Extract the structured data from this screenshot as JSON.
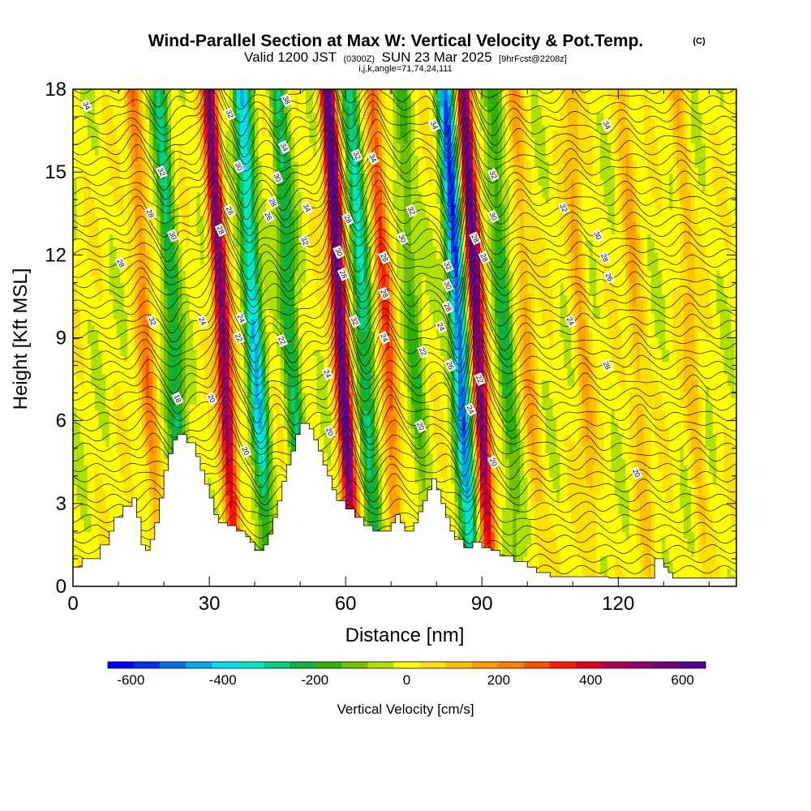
{
  "header": {
    "title": "Wind-Parallel Section at Max W: Vertical Velocity & Pot.Temp.",
    "copyright": "(C)",
    "valid_prefix": "Valid 1200 JST",
    "valid_utc": "(0300Z)",
    "valid_date": "SUN 23 Mar 2025",
    "forecast": "[9hrFcst@2208z]",
    "indices": "i,j,k,angle=71,74,24,111"
  },
  "chart_data": {
    "type": "heatmap",
    "xlabel": "Distance [nm]",
    "ylabel": "Height [Kft MSL]",
    "xlim": [
      0,
      146
    ],
    "ylim": [
      0,
      18
    ],
    "x_ticks": [
      0,
      30,
      60,
      90,
      120
    ],
    "x_tick_labels": [
      "0",
      "30",
      "60",
      "90",
      "120"
    ],
    "y_ticks": [
      0,
      3,
      6,
      9,
      12,
      15,
      18
    ],
    "y_tick_labels": [
      "0",
      "3",
      "6",
      "9",
      "12",
      "15",
      "18"
    ],
    "colorbar": {
      "label": "Vertical Velocity [cm/s]",
      "min": -650,
      "max": 650,
      "tick_values": [
        -600,
        -400,
        -200,
        0,
        200,
        400,
        600
      ],
      "tick_labels": [
        "-600",
        "-400",
        "-200",
        "0",
        "200",
        "400",
        "600"
      ],
      "colors": [
        "#0000ff",
        "#0030f0",
        "#0070e8",
        "#00a8e8",
        "#00e0f0",
        "#00e8c0",
        "#00d080",
        "#10b040",
        "#30b000",
        "#70c000",
        "#b0e000",
        "#ffff00",
        "#ffe000",
        "#ffc000",
        "#ffa000",
        "#ff8000",
        "#ff5000",
        "#ff1800",
        "#e00020",
        "#b00050",
        "#900070",
        "#70007a",
        "#580090"
      ]
    },
    "updrafts": [
      {
        "x0": 33,
        "w": 550
      },
      {
        "x0": 59,
        "w": 650
      },
      {
        "x0": 69,
        "w": 300
      },
      {
        "x0": 89,
        "w": 620
      },
      {
        "x0": 16,
        "w": 220
      },
      {
        "x0": 100,
        "w": 150
      },
      {
        "x0": 112,
        "w": 150
      },
      {
        "x0": 124,
        "w": 140
      },
      {
        "x0": 136,
        "w": 120
      }
    ],
    "downdrafts": [
      {
        "x0": 40,
        "w": -400
      },
      {
        "x0": 48,
        "w": -250
      },
      {
        "x0": 64,
        "w": -300
      },
      {
        "x0": 85,
        "w": -550
      },
      {
        "x0": 22,
        "w": -250
      },
      {
        "x0": 95,
        "w": -200
      },
      {
        "x0": 75,
        "w": -150
      }
    ],
    "terrain": [
      [
        0,
        0.7
      ],
      [
        2,
        0.7
      ],
      [
        2,
        1
      ],
      [
        6,
        1
      ],
      [
        6,
        1.5
      ],
      [
        8,
        1.5
      ],
      [
        8,
        2
      ],
      [
        9,
        2
      ],
      [
        9,
        2.5
      ],
      [
        11,
        2.5
      ],
      [
        11,
        2.9
      ],
      [
        13,
        2.9
      ],
      [
        13,
        3.2
      ],
      [
        14,
        3.2
      ],
      [
        14,
        2.5
      ],
      [
        15,
        2.5
      ],
      [
        15,
        1.5
      ],
      [
        16,
        1.5
      ],
      [
        16,
        1.3
      ],
      [
        17,
        1.3
      ],
      [
        17,
        1.7
      ],
      [
        18,
        1.7
      ],
      [
        18,
        2.3
      ],
      [
        19,
        2.3
      ],
      [
        19,
        3.2
      ],
      [
        20,
        3.2
      ],
      [
        20,
        4.2
      ],
      [
        21,
        4.2
      ],
      [
        21,
        4.8
      ],
      [
        22,
        4.8
      ],
      [
        22,
        5.3
      ],
      [
        23,
        5.3
      ],
      [
        23,
        5.5
      ],
      [
        25,
        5.5
      ],
      [
        25,
        5.2
      ],
      [
        27,
        5.2
      ],
      [
        27,
        4.7
      ],
      [
        28,
        4.7
      ],
      [
        28,
        4.2
      ],
      [
        29,
        4.2
      ],
      [
        29,
        3.7
      ],
      [
        30,
        3.7
      ],
      [
        30,
        3.2
      ],
      [
        31,
        3.2
      ],
      [
        31,
        2.6
      ],
      [
        32,
        2.6
      ],
      [
        32,
        2.3
      ],
      [
        34,
        2.3
      ],
      [
        34,
        2.2
      ],
      [
        36,
        2.2
      ],
      [
        36,
        2.0
      ],
      [
        38,
        2.0
      ],
      [
        38,
        1.8
      ],
      [
        39,
        1.8
      ],
      [
        39,
        1.6
      ],
      [
        40,
        1.6
      ],
      [
        40,
        1.3
      ],
      [
        42,
        1.3
      ],
      [
        42,
        1.5
      ],
      [
        43,
        1.5
      ],
      [
        43,
        1.9
      ],
      [
        44,
        1.9
      ],
      [
        44,
        2.5
      ],
      [
        45,
        2.5
      ],
      [
        45,
        3.1
      ],
      [
        46,
        3.1
      ],
      [
        46,
        3.8
      ],
      [
        47,
        3.8
      ],
      [
        47,
        4.4
      ],
      [
        48,
        4.4
      ],
      [
        48,
        4.9
      ],
      [
        49,
        4.9
      ],
      [
        49,
        5.5
      ],
      [
        50,
        5.5
      ],
      [
        50,
        5.9
      ],
      [
        52,
        5.9
      ],
      [
        52,
        5.7
      ],
      [
        53,
        5.7
      ],
      [
        53,
        5.3
      ],
      [
        54,
        5.3
      ],
      [
        54,
        4.9
      ],
      [
        55,
        4.9
      ],
      [
        55,
        4.4
      ],
      [
        56,
        4.4
      ],
      [
        56,
        4.0
      ],
      [
        57,
        4.0
      ],
      [
        57,
        3.5
      ],
      [
        58,
        3.5
      ],
      [
        58,
        3.1
      ],
      [
        60,
        3.1
      ],
      [
        60,
        2.8
      ],
      [
        62,
        2.8
      ],
      [
        62,
        2.5
      ],
      [
        64,
        2.5
      ],
      [
        64,
        2.2
      ],
      [
        66,
        2.2
      ],
      [
        66,
        2.0
      ],
      [
        70,
        2.0
      ],
      [
        70,
        2.3
      ],
      [
        71,
        2.3
      ],
      [
        71,
        2.6
      ],
      [
        72,
        2.6
      ],
      [
        72,
        2.3
      ],
      [
        73,
        2.3
      ],
      [
        73,
        2.0
      ],
      [
        75,
        2.0
      ],
      [
        75,
        2.3
      ],
      [
        76,
        2.3
      ],
      [
        76,
        2.7
      ],
      [
        77,
        2.7
      ],
      [
        77,
        3.1
      ],
      [
        78,
        3.1
      ],
      [
        78,
        3.5
      ],
      [
        79,
        3.5
      ],
      [
        79,
        3.9
      ],
      [
        80,
        3.9
      ],
      [
        80,
        3.5
      ],
      [
        81,
        3.5
      ],
      [
        81,
        3.0
      ],
      [
        82,
        3.0
      ],
      [
        82,
        2.5
      ],
      [
        83,
        2.5
      ],
      [
        83,
        2.0
      ],
      [
        84,
        2.0
      ],
      [
        84,
        1.7
      ],
      [
        86,
        1.7
      ],
      [
        86,
        1.4
      ],
      [
        88,
        1.4
      ],
      [
        88,
        1.6
      ],
      [
        90,
        1.6
      ],
      [
        90,
        1.4
      ],
      [
        92,
        1.4
      ],
      [
        92,
        1.3
      ],
      [
        94,
        1.3
      ],
      [
        94,
        1.1
      ],
      [
        97,
        1.1
      ],
      [
        97,
        0.9
      ],
      [
        100,
        0.9
      ],
      [
        100,
        0.7
      ],
      [
        102,
        0.7
      ],
      [
        102,
        0.5
      ],
      [
        105,
        0.5
      ],
      [
        105,
        0.35
      ],
      [
        118,
        0.35
      ],
      [
        118,
        0.3
      ],
      [
        128,
        0.3
      ],
      [
        128,
        1.0
      ],
      [
        130,
        1.0
      ],
      [
        130,
        0.7
      ],
      [
        131,
        0.7
      ],
      [
        131,
        0.5
      ],
      [
        132,
        0.5
      ],
      [
        132,
        0.3
      ],
      [
        146,
        0.3
      ]
    ],
    "contour_labels": [
      {
        "text": "34",
        "x": 3,
        "y": 17.4
      },
      {
        "text": "32",
        "x": 19.5,
        "y": 15.0
      },
      {
        "text": "28",
        "x": 17,
        "y": 13.5
      },
      {
        "text": "30",
        "x": 22,
        "y": 12.7
      },
      {
        "text": "28",
        "x": 10.5,
        "y": 11.7
      },
      {
        "text": "32",
        "x": 17.5,
        "y": 9.6
      },
      {
        "text": "24",
        "x": 28.5,
        "y": 9.6
      },
      {
        "text": "18",
        "x": 23,
        "y": 6.8
      },
      {
        "text": "20",
        "x": 30.5,
        "y": 6.8
      },
      {
        "text": "32",
        "x": 34.5,
        "y": 17.1
      },
      {
        "text": "30",
        "x": 36.5,
        "y": 15.2
      },
      {
        "text": "28",
        "x": 34.5,
        "y": 13.6
      },
      {
        "text": "28",
        "x": 32.5,
        "y": 12.9
      },
      {
        "text": "24",
        "x": 37,
        "y": 9.7
      },
      {
        "text": "22",
        "x": 36.5,
        "y": 9.0
      },
      {
        "text": "20",
        "x": 38,
        "y": 4.9
      },
      {
        "text": "38",
        "x": 47,
        "y": 17.6
      },
      {
        "text": "34",
        "x": 46.5,
        "y": 15.9
      },
      {
        "text": "30",
        "x": 45,
        "y": 14.8
      },
      {
        "text": "28",
        "x": 44,
        "y": 13.9
      },
      {
        "text": "26",
        "x": 43,
        "y": 13.4
      },
      {
        "text": "34",
        "x": 51.5,
        "y": 13.7
      },
      {
        "text": "32",
        "x": 51,
        "y": 12.5
      },
      {
        "text": "22",
        "x": 46,
        "y": 8.9
      },
      {
        "text": "24",
        "x": 56,
        "y": 7.7
      },
      {
        "text": "20",
        "x": 56.5,
        "y": 5.6
      },
      {
        "text": "32",
        "x": 62.5,
        "y": 15.6
      },
      {
        "text": "34",
        "x": 66,
        "y": 15.5
      },
      {
        "text": "28",
        "x": 60.5,
        "y": 13.3
      },
      {
        "text": "30",
        "x": 58.5,
        "y": 12.1
      },
      {
        "text": "28",
        "x": 59.5,
        "y": 11.3
      },
      {
        "text": "32",
        "x": 62,
        "y": 9.6
      },
      {
        "text": "28",
        "x": 68.5,
        "y": 11.9
      },
      {
        "text": "28",
        "x": 68.5,
        "y": 10.6
      },
      {
        "text": "24",
        "x": 68.5,
        "y": 9.0
      },
      {
        "text": "32",
        "x": 74.5,
        "y": 13.6
      },
      {
        "text": "30",
        "x": 72.5,
        "y": 12.6
      },
      {
        "text": "22",
        "x": 77,
        "y": 8.5
      },
      {
        "text": "20",
        "x": 76.5,
        "y": 5.8
      },
      {
        "text": "34",
        "x": 79.5,
        "y": 16.7
      },
      {
        "text": "32",
        "x": 82.5,
        "y": 11.6
      },
      {
        "text": "30",
        "x": 82.5,
        "y": 10.9
      },
      {
        "text": "28",
        "x": 82.5,
        "y": 10.1
      },
      {
        "text": "24",
        "x": 81,
        "y": 9.4
      },
      {
        "text": "26",
        "x": 83,
        "y": 8.0
      },
      {
        "text": "32",
        "x": 92.5,
        "y": 14.9
      },
      {
        "text": "30",
        "x": 92.5,
        "y": 13.4
      },
      {
        "text": "28",
        "x": 88.5,
        "y": 12.6
      },
      {
        "text": "28",
        "x": 90.5,
        "y": 11.9
      },
      {
        "text": "22",
        "x": 89.5,
        "y": 7.5
      },
      {
        "text": "24",
        "x": 87.5,
        "y": 6.4
      },
      {
        "text": "20",
        "x": 92.5,
        "y": 4.5
      },
      {
        "text": "34",
        "x": 117.5,
        "y": 16.7
      },
      {
        "text": "32",
        "x": 108,
        "y": 13.7
      },
      {
        "text": "30",
        "x": 115.5,
        "y": 12.7
      },
      {
        "text": "28",
        "x": 117,
        "y": 11.9
      },
      {
        "text": "26",
        "x": 118,
        "y": 11.2
      },
      {
        "text": "24",
        "x": 109.5,
        "y": 9.6
      },
      {
        "text": "28",
        "x": 117.5,
        "y": 8.0
      },
      {
        "text": "20",
        "x": 124,
        "y": 4.1
      }
    ]
  }
}
